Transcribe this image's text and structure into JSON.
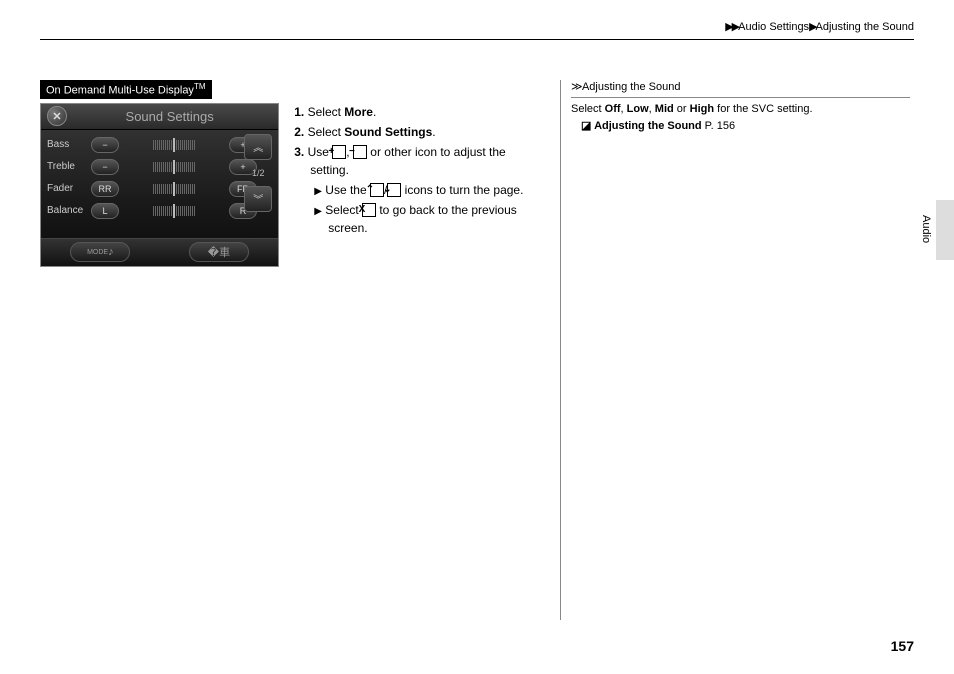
{
  "breadcrumb": {
    "section": "Audio Settings",
    "subsection": "Adjusting the Sound"
  },
  "label_bar": {
    "text": "On Demand Multi-Use Display",
    "tm": "TM"
  },
  "display": {
    "title": "Sound Settings",
    "rows": [
      {
        "label": "Bass",
        "left": "−",
        "right": "+"
      },
      {
        "label": "Treble",
        "left": "−",
        "right": "+"
      },
      {
        "label": "Fader",
        "left": "RR",
        "right": "FR"
      },
      {
        "label": "Balance",
        "left": "L",
        "right": "R"
      }
    ],
    "page_indicator": "1/2"
  },
  "instructions": {
    "step1_pre": "Select ",
    "step1_bold": "More",
    "step1_post": ".",
    "step2_pre": "Select ",
    "step2_bold": "Sound Settings",
    "step2_post": ".",
    "step3_pre": "Use ",
    "step3_mid": ", ",
    "step3_post": " or other icon to adjust the setting.",
    "sub1_pre": "Use the ",
    "sub1_mid": "/",
    "sub1_post": " icons to turn the page.",
    "sub2_pre": "Select ",
    "sub2_post": " to go back to the previous screen."
  },
  "icons": {
    "plus": "+",
    "minus": "−",
    "up": "⌃",
    "down": "⌄",
    "x": "X"
  },
  "sidebar": {
    "title": "Adjusting the Sound",
    "line1_pre": "Select ",
    "off": "Off",
    "low": "Low",
    "mid": "Mid",
    "high": "High",
    "line1_post": " for the SVC setting.",
    "link_label": "Adjusting the Sound",
    "link_page": "P. 156"
  },
  "side_tab": "Audio",
  "page_number": "157"
}
